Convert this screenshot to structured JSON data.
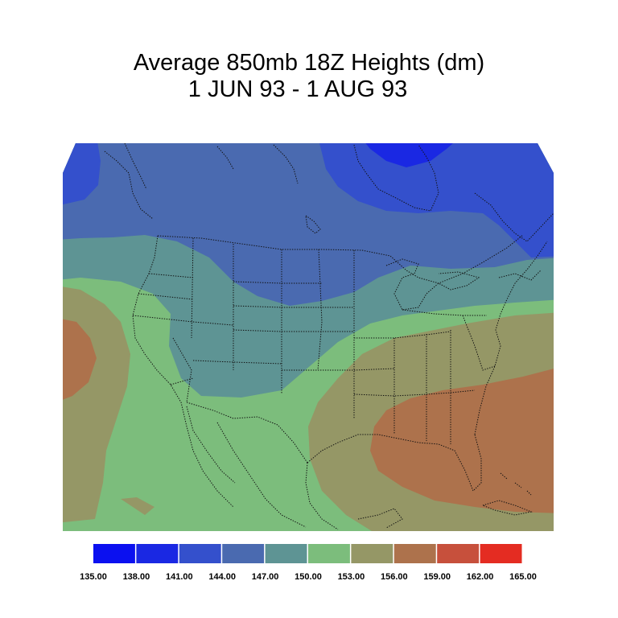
{
  "title": {
    "line1": "Average 850mb 18Z Heights (dm)",
    "line2": "1 JUN 93 - 1 AUG 93"
  },
  "legend": {
    "ticks": [
      "135.00",
      "138.00",
      "141.00",
      "144.00",
      "147.00",
      "150.00",
      "153.00",
      "156.00",
      "159.00",
      "162.00",
      "165.00"
    ],
    "colors": [
      "#0b10f0",
      "#1a28e3",
      "#3450cc",
      "#4a6ab0",
      "#5e9494",
      "#7cbd7c",
      "#959766",
      "#ad724c",
      "#c7503c",
      "#e42c22"
    ]
  },
  "map": {
    "region": "North America (contiguous US, southern Canada, northern Mexico)",
    "field": "850mb geopotential height, decameters"
  }
}
